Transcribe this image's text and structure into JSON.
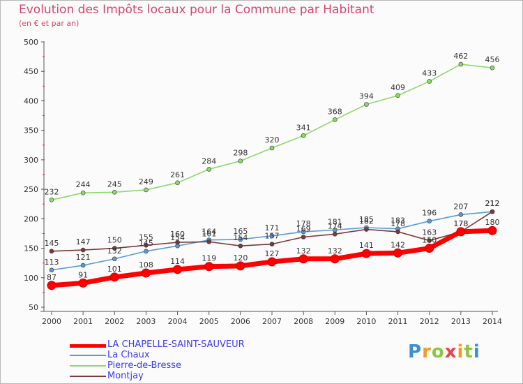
{
  "title": "Evolution des Impôts locaux pour la Commune par Habitant",
  "subtitle": "(en € et par an)",
  "brand": "Proxiti",
  "chart_data": {
    "type": "line",
    "title": "Evolution des Impôts locaux pour la Commune par Habitant",
    "subtitle": "(en € et par an)",
    "x": [
      "2000",
      "2001",
      "2002",
      "2003",
      "2004",
      "2005",
      "2006",
      "2007",
      "2008",
      "2009",
      "2010",
      "2011",
      "2012",
      "2013",
      "2014"
    ],
    "ylim": [
      50,
      500
    ],
    "yticks": [
      50,
      100,
      150,
      200,
      250,
      300,
      350,
      400,
      450,
      500
    ],
    "grid": false,
    "legend_position": "bottom-left",
    "series": [
      {
        "name": "LA CHAPELLE-SAINT-SAUVEUR",
        "color": "#ff0000",
        "values": [
          87,
          91,
          101,
          108,
          114,
          119,
          120,
          127,
          132,
          132,
          141,
          142,
          150,
          178,
          180
        ]
      },
      {
        "name": "La Chaux",
        "color": "#5a9bd5",
        "values": [
          113,
          121,
          132,
          145,
          154,
          164,
          165,
          171,
          178,
          181,
          185,
          183,
          196,
          207,
          212
        ]
      },
      {
        "name": "Pierre-de-Bresse",
        "color": "#8fd86b",
        "values": [
          232,
          244,
          245,
          249,
          261,
          284,
          298,
          320,
          341,
          368,
          394,
          409,
          433,
          462,
          456
        ]
      },
      {
        "name": "Montjay",
        "color": "#7a3a3a",
        "values": [
          145,
          147,
          150,
          155,
          160,
          161,
          154,
          157,
          169,
          174,
          182,
          178,
          163,
          178,
          212
        ]
      }
    ]
  }
}
